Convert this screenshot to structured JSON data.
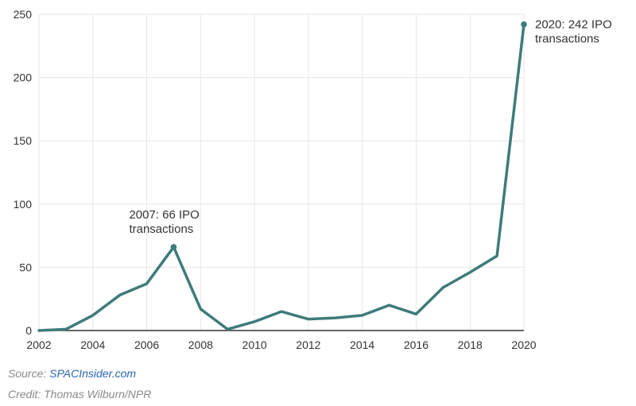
{
  "chart_data": {
    "type": "line",
    "title": "",
    "xlabel": "",
    "ylabel": "",
    "x": [
      2002,
      2003,
      2004,
      2005,
      2006,
      2007,
      2008,
      2009,
      2010,
      2011,
      2012,
      2013,
      2014,
      2015,
      2016,
      2017,
      2018,
      2019,
      2020
    ],
    "series": [
      {
        "values": [
          0,
          1,
          12,
          28,
          37,
          66,
          17,
          1,
          7,
          15,
          9,
          10,
          12,
          20,
          13,
          34,
          46,
          59,
          242
        ]
      }
    ],
    "xlim": [
      2002,
      2020
    ],
    "ylim": [
      0,
      250
    ],
    "x_ticks": [
      "2002",
      "2004",
      "2006",
      "2008",
      "2010",
      "2012",
      "2014",
      "2016",
      "2018",
      "2020"
    ],
    "y_ticks": [
      "0",
      "50",
      "100",
      "150",
      "200",
      "250"
    ],
    "grid": true,
    "annotations": [
      {
        "x": 2007,
        "y": 66,
        "line1": "2007: 66 IPO",
        "line2": "transactions"
      },
      {
        "x": 2020,
        "y": 242,
        "line1": "2020: 242 IPO",
        "line2": "transactions"
      }
    ],
    "colors": {
      "line": "#3f7b7b",
      "grid": "#e6e6e6",
      "baseline": "#333333",
      "text": "#333333"
    }
  },
  "footer": {
    "source_prefix": "Source: ",
    "source_link": "SPACInsider.com",
    "credit": "Credit: Thomas Wilburn/NPR"
  }
}
